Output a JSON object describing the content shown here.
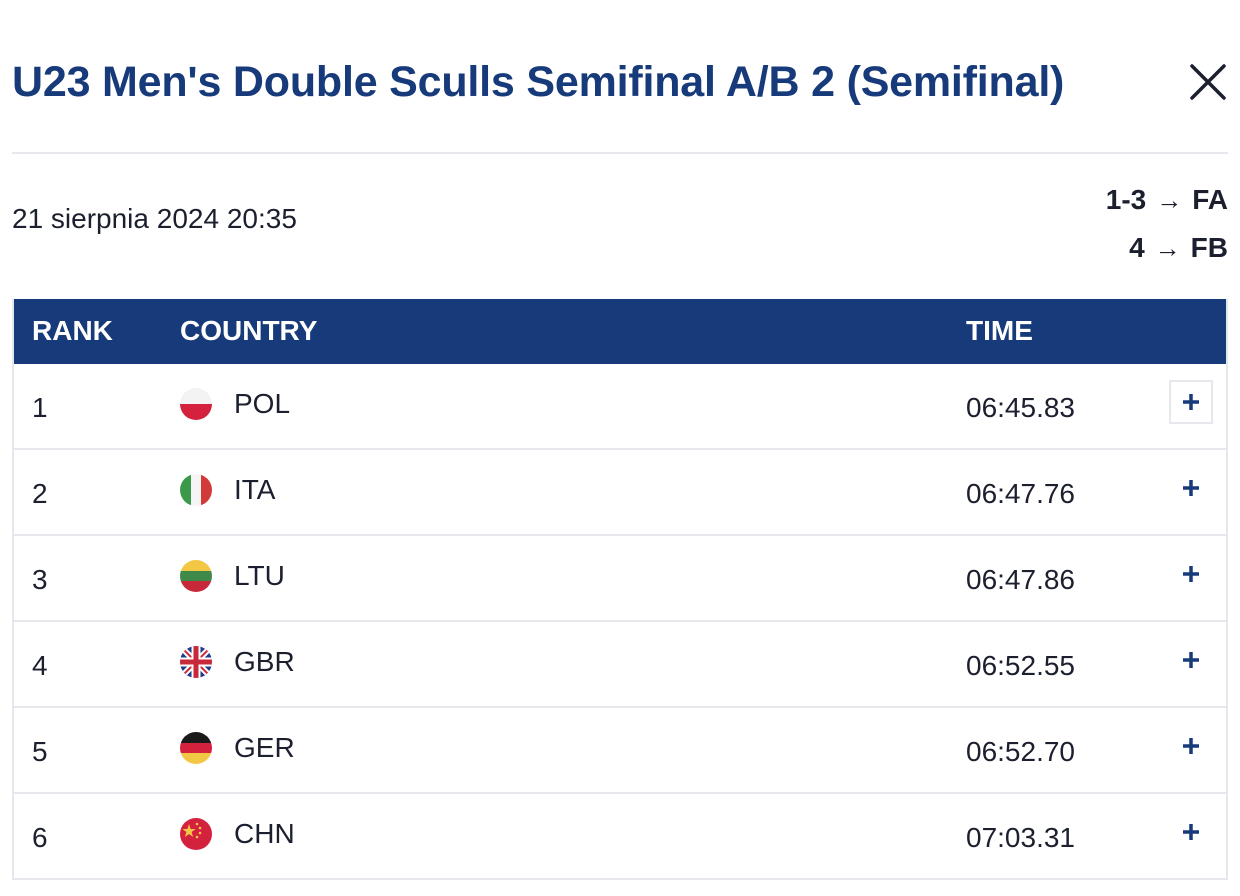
{
  "header": {
    "title": "U23 Men's Double Sculls Semifinal A/B 2 (Semifinal)",
    "close_icon": "close-icon"
  },
  "race": {
    "datetime": "21 sierpnia 2024 20:35",
    "progression": [
      {
        "ranks": "1-3",
        "arrow": "→",
        "final": "FA"
      },
      {
        "ranks": "4",
        "arrow": "→",
        "final": "FB"
      }
    ]
  },
  "table": {
    "headers": {
      "rank": "RANK",
      "country": "COUNTRY",
      "time": "TIME"
    },
    "rows": [
      {
        "rank": "1",
        "country": "POL",
        "time": "06:45.83",
        "flag": "poland-flag-icon"
      },
      {
        "rank": "2",
        "country": "ITA",
        "time": "06:47.76",
        "flag": "italy-flag-icon"
      },
      {
        "rank": "3",
        "country": "LTU",
        "time": "06:47.86",
        "flag": "lithuania-flag-icon"
      },
      {
        "rank": "4",
        "country": "GBR",
        "time": "06:52.55",
        "flag": "great-britain-flag-icon"
      },
      {
        "rank": "5",
        "country": "GER",
        "time": "06:52.70",
        "flag": "germany-flag-icon"
      },
      {
        "rank": "6",
        "country": "CHN",
        "time": "07:03.31",
        "flag": "china-flag-icon"
      }
    ],
    "expand_icon": "plus-icon"
  },
  "colors": {
    "brand_navy": "#173a7a",
    "divider": "#e6e8ed",
    "text": "#1b1f2e"
  }
}
